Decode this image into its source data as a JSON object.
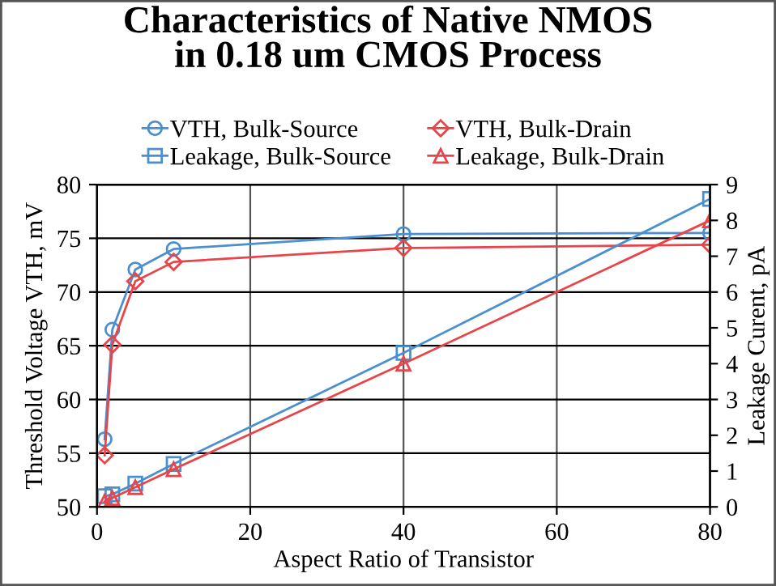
{
  "chart_data": {
    "type": "line",
    "title": "Characteristics of Native NMOS\nin 0.18 um CMOS Process",
    "xlabel": "Aspect Ratio of Transistor",
    "ylabel": "Threshold Voltage VTH, mV",
    "y2label": "Leakage Curent, pA",
    "x": [
      1,
      2,
      5,
      10,
      40,
      80
    ],
    "series": [
      {
        "name": "VTH, Bulk-Source",
        "color": "#4a8fcf",
        "marker": "circle",
        "values": [
          56.3,
          66.5,
          72.1,
          74.0,
          75.4,
          75.5
        ]
      },
      {
        "name": "VTH, Bulk-Drain",
        "color": "#e8454a",
        "marker": "diamond",
        "values": [
          54.8,
          65.1,
          71.0,
          72.8,
          74.1,
          74.4
        ]
      },
      {
        "name": "Leakage, Bulk-Source",
        "color": "#4a8fcf",
        "marker": "square",
        "axis": "y2",
        "values": [
          0.3,
          0.35,
          0.65,
          1.2,
          4.3,
          8.6
        ]
      },
      {
        "name": "Leakage, Bulk-Drain",
        "color": "#e8454a",
        "marker": "triangle",
        "axis": "y2",
        "values": [
          0.15,
          0.25,
          0.55,
          1.05,
          4.0,
          8.0
        ]
      }
    ],
    "xlim": [
      0,
      80
    ],
    "xticks": [
      0,
      20,
      40,
      60,
      80
    ],
    "ylim": [
      50,
      80
    ],
    "yticks": [
      50,
      55,
      60,
      65,
      70,
      75,
      80
    ],
    "y2lim": [
      0,
      9
    ],
    "y2ticks": [
      0,
      1,
      2,
      3,
      4,
      5,
      6,
      7,
      8,
      9
    ],
    "grid": true,
    "legend": "top"
  }
}
